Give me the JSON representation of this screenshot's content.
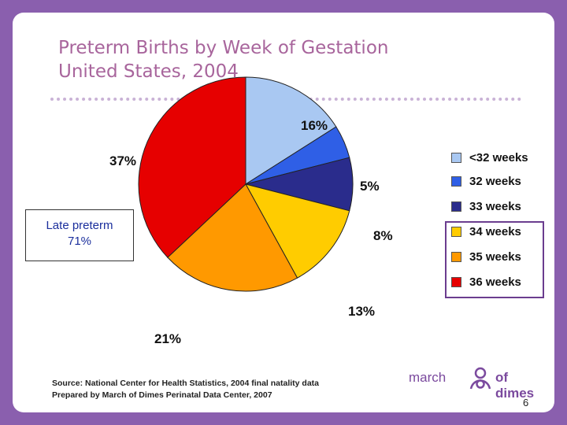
{
  "chart_data": {
    "type": "pie",
    "title_lines": [
      "Preterm Births by Week of Gestation",
      "United States, 2004"
    ],
    "slices": [
      {
        "label": "<32 weeks",
        "value": 16,
        "display": "16%",
        "color": "#a9c8f2"
      },
      {
        "label": "32 weeks",
        "value": 5,
        "display": "5%",
        "color": "#2f5fe6"
      },
      {
        "label": "33 weeks",
        "value": 8,
        "display": "8%",
        "color": "#2a2c8c"
      },
      {
        "label": "34 weeks",
        "value": 13,
        "display": "13%",
        "color": "#ffcc00"
      },
      {
        "label": "35 weeks",
        "value": 21,
        "display": "21%",
        "color": "#ff9900"
      },
      {
        "label": "36 weeks",
        "value": 37,
        "display": "37%",
        "color": "#e60000"
      }
    ],
    "legend_placement": "right",
    "callout": {
      "line1": "Late preterm",
      "line2": "71%"
    }
  },
  "source": {
    "line1": "Source: National Center for Health Statistics, 2004 final natality data",
    "line2": "Prepared by March of Dimes Perinatal Data Center, 2007"
  },
  "logo": {
    "left": "march",
    "right": "of dimes"
  },
  "page_number": "6"
}
